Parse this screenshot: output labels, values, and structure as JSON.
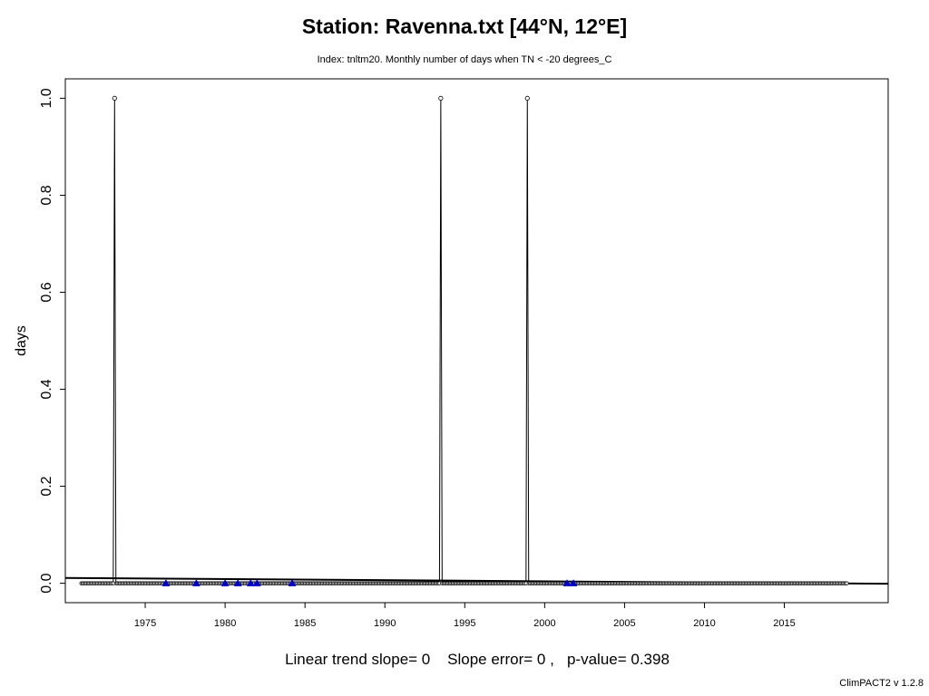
{
  "title": "Station: Ravenna.txt [44°N, 12°E]",
  "subtitle": "Index: tnltm20. Monthly number of days when TN < -20 degrees_C",
  "trend_text": "Linear trend slope= 0    Slope error= 0 ,   p-value= 0.398",
  "footer": "ClimPACT2 v 1.2.8",
  "chart_data": {
    "type": "line",
    "title": "Station: Ravenna.txt [44°N, 12°E]",
    "subtitle": "Index: tnltm20. Monthly number of days when TN < -20 degrees_C",
    "xlabel": "",
    "ylabel": "days",
    "xlim": [
      1970.0,
      2021.5
    ],
    "ylim": [
      -0.04,
      1.04
    ],
    "x_ticks": [
      1975,
      1980,
      1985,
      1990,
      1995,
      2000,
      2005,
      2010,
      2015
    ],
    "y_ticks": [
      "0.0",
      "0.2",
      "0.4",
      "0.6",
      "0.8",
      "1.0"
    ],
    "grid": false,
    "series": [
      {
        "start_year": 1971,
        "end_year": 2018,
        "baseline_value": 0,
        "spikes": [
          {
            "x": 1973.1,
            "y": 1
          },
          {
            "x": 1993.5,
            "y": 1
          },
          {
            "x": 1998.9,
            "y": 1
          }
        ]
      }
    ],
    "trend_line": {
      "x": [
        1970.0,
        2021.5
      ],
      "y": [
        0.011,
        -0.001
      ]
    },
    "highlighted_points": [
      {
        "x": 1976.3,
        "y": 0
      },
      {
        "x": 1978.2,
        "y": 0
      },
      {
        "x": 1980.0,
        "y": 0
      },
      {
        "x": 1980.8,
        "y": 0
      },
      {
        "x": 1981.6,
        "y": 0
      },
      {
        "x": 1982.0,
        "y": 0
      },
      {
        "x": 1984.2,
        "y": 0
      },
      {
        "x": 2001.4,
        "y": 0
      },
      {
        "x": 2001.8,
        "y": 0
      }
    ],
    "colors": {
      "line": "#000000",
      "highlight": "#0000cc",
      "background": "#ffffff"
    }
  }
}
